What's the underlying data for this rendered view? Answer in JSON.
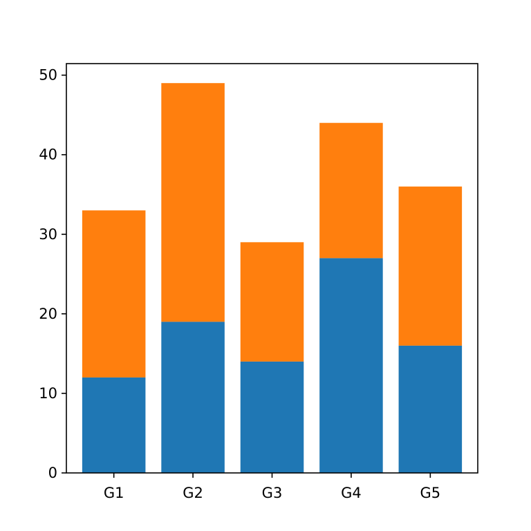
{
  "chart_data": {
    "type": "bar",
    "stacked": true,
    "title": "",
    "xlabel": "",
    "ylabel": "",
    "categories": [
      "G1",
      "G2",
      "G3",
      "G4",
      "G5"
    ],
    "series": [
      {
        "values": [
          12,
          19,
          14,
          27,
          16
        ],
        "color": "#1f77b4"
      },
      {
        "values": [
          21,
          30,
          15,
          17,
          20
        ],
        "color": "#ff7f0e"
      }
    ],
    "ylim": [
      0,
      51.45
    ],
    "yticks": [
      0,
      10,
      20,
      30,
      40,
      50
    ],
    "grid": false,
    "legend": "none"
  }
}
